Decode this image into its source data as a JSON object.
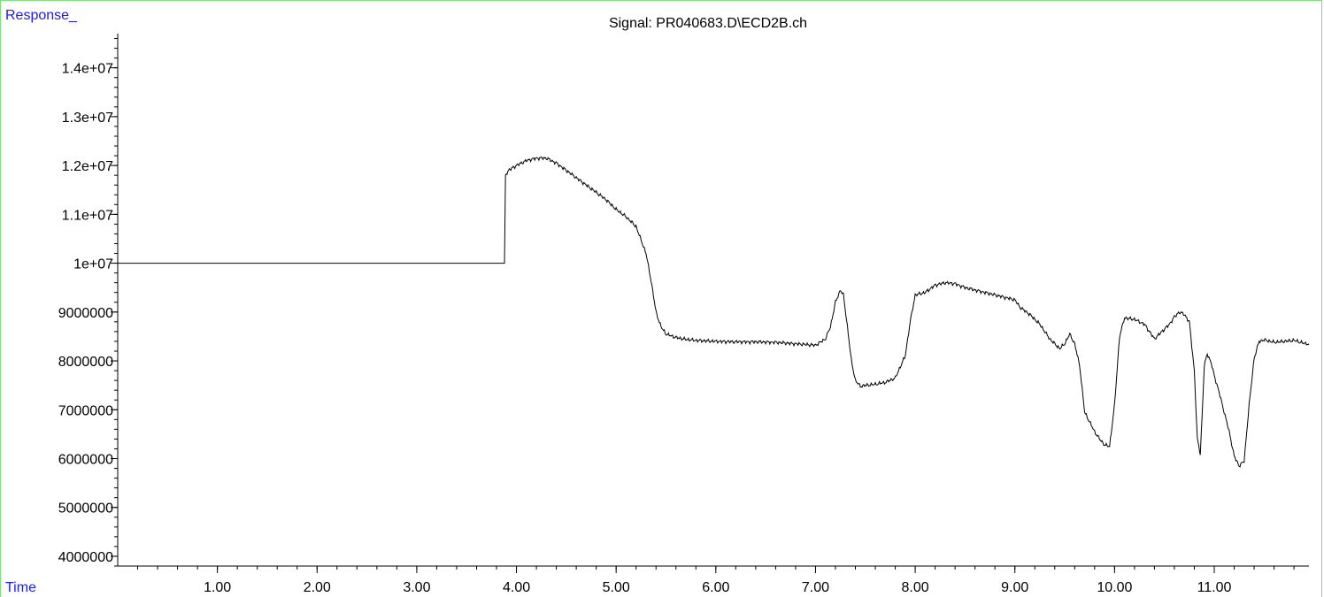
{
  "chart_data": {
    "type": "line",
    "title": "Signal: PR040683.D\\ECD2B.ch",
    "ylabel": "Response_",
    "xlabel": "Time",
    "xlim": [
      0,
      11.95
    ],
    "ylim": [
      3800000,
      14700000
    ],
    "x_ticks": [
      1.0,
      2.0,
      3.0,
      4.0,
      5.0,
      6.0,
      7.0,
      8.0,
      9.0,
      10.0,
      11.0
    ],
    "x_tick_labels": [
      "1.00",
      "2.00",
      "3.00",
      "4.00",
      "5.00",
      "6.00",
      "7.00",
      "8.00",
      "9.00",
      "10.00",
      "11.00"
    ],
    "y_ticks": [
      4000000,
      5000000,
      6000000,
      7000000,
      8000000,
      9000000,
      10000000,
      11000000,
      12000000,
      13000000,
      14000000
    ],
    "y_tick_labels": [
      "4000000",
      "5000000",
      "6000000",
      "7000000",
      "8000000",
      "9000000",
      "1e+07",
      "1.1e+07",
      "1.2e+07",
      "1.3e+07",
      "1.4e+07"
    ],
    "grid": false,
    "line_color": "#000000",
    "label_color": "#1a1aff",
    "frame_color": "#7fe07f",
    "series": [
      {
        "x": [
          0.0,
          3.88,
          3.89,
          3.92,
          4.0,
          4.1,
          4.2,
          4.3,
          4.4,
          4.5,
          4.6,
          4.7,
          4.8,
          4.9,
          5.0,
          5.1,
          5.2,
          5.3,
          5.35,
          5.4,
          5.45,
          5.5,
          5.6,
          5.7,
          5.8,
          5.9,
          6.0,
          6.2,
          6.4,
          6.6,
          6.8,
          7.0,
          7.1,
          7.15,
          7.2,
          7.25,
          7.28,
          7.32,
          7.36,
          7.4,
          7.45,
          7.5,
          7.6,
          7.7,
          7.8,
          7.9,
          7.95,
          8.0,
          8.1,
          8.2,
          8.3,
          8.4,
          8.5,
          8.6,
          8.7,
          8.8,
          8.9,
          9.0,
          9.05,
          9.15,
          9.25,
          9.35,
          9.45,
          9.5,
          9.55,
          9.6,
          9.65,
          9.7,
          9.75,
          9.8,
          9.85,
          9.9,
          9.95,
          10.0,
          10.05,
          10.1,
          10.2,
          10.3,
          10.4,
          10.5,
          10.55,
          10.6,
          10.65,
          10.7,
          10.75,
          10.8,
          10.83,
          10.86,
          10.88,
          10.9,
          10.93,
          10.97,
          11.0,
          11.05,
          11.1,
          11.15,
          11.2,
          11.25,
          11.3,
          11.35,
          11.4,
          11.45,
          11.5,
          11.6,
          11.7,
          11.8,
          11.9,
          11.95
        ],
        "y": [
          10000000,
          10000000,
          11800000,
          11900000,
          12000000,
          12100000,
          12150000,
          12150000,
          12050000,
          11900000,
          11750000,
          11600000,
          11450000,
          11300000,
          11100000,
          10950000,
          10750000,
          10200000,
          9650000,
          9000000,
          8700000,
          8550000,
          8480000,
          8440000,
          8420000,
          8410000,
          8400000,
          8390000,
          8390000,
          8380000,
          8350000,
          8320000,
          8450000,
          8700000,
          9200000,
          9450000,
          9350000,
          8700000,
          8000000,
          7600000,
          7480000,
          7500000,
          7520000,
          7560000,
          7650000,
          8100000,
          8800000,
          9350000,
          9400000,
          9550000,
          9600000,
          9580000,
          9500000,
          9450000,
          9400000,
          9350000,
          9300000,
          9250000,
          9100000,
          8950000,
          8750000,
          8450000,
          8250000,
          8350000,
          8550000,
          8350000,
          7900000,
          6950000,
          6750000,
          6550000,
          6400000,
          6280000,
          6250000,
          7100000,
          8500000,
          8880000,
          8850000,
          8750000,
          8450000,
          8650000,
          8750000,
          8900000,
          9000000,
          8950000,
          8800000,
          7800000,
          6400000,
          6100000,
          6950000,
          7900000,
          8150000,
          7950000,
          7700000,
          7350000,
          6950000,
          6550000,
          6050000,
          5850000,
          5950000,
          7100000,
          8050000,
          8400000,
          8430000,
          8380000,
          8400000,
          8420000,
          8360000,
          8350000
        ]
      }
    ]
  }
}
